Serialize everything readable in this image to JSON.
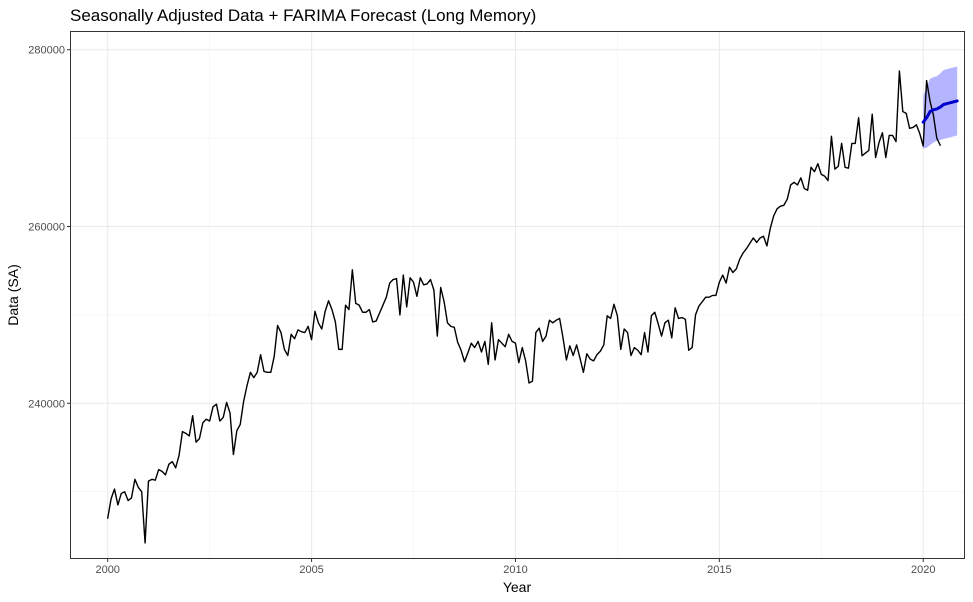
{
  "chart_data": {
    "type": "line",
    "title": "Seasonally Adjusted Data + FARIMA Forecast (Long Memory)",
    "xlabel": "Year",
    "ylabel": "Data (SA)",
    "xlim": [
      1999.1,
      2021.0
    ],
    "ylim": [
      222500,
      282000
    ],
    "x_ticks": [
      2000,
      2005,
      2010,
      2015,
      2020
    ],
    "x_tick_labels": [
      "2000",
      "2005",
      "2010",
      "2015",
      "2020"
    ],
    "y_ticks": [
      240000,
      260000,
      280000
    ],
    "y_tick_labels": [
      "240000",
      "260000",
      "280000"
    ],
    "grid": true,
    "legend": "none",
    "series": [
      {
        "role": "observed",
        "color": "#000000",
        "x_start": 2000.0,
        "x_step": 0.08333,
        "values": [
          227000,
          229200,
          230300,
          228500,
          229800,
          230000,
          229000,
          229300,
          231400,
          230500,
          230000,
          224200,
          231200,
          231400,
          231300,
          232500,
          232300,
          231900,
          233100,
          233400,
          232700,
          234100,
          236800,
          236600,
          236300,
          238600,
          235600,
          236000,
          237800,
          238200,
          238000,
          239600,
          239900,
          238000,
          238400,
          240100,
          238900,
          234200,
          236900,
          237600,
          240200,
          242000,
          243500,
          242900,
          243500,
          245500,
          243600,
          243500,
          243500,
          245300,
          248800,
          248000,
          246100,
          245400,
          247800,
          247300,
          248300,
          248100,
          248000,
          248700,
          247200,
          250400,
          249100,
          248400,
          250400,
          251600,
          250600,
          249200,
          246100,
          246100,
          251100,
          250600,
          255100,
          251300,
          251100,
          250300,
          250300,
          250600,
          249200,
          249300,
          250200,
          251100,
          252000,
          253600,
          254000,
          254100,
          250000,
          254500,
          250900,
          254200,
          253700,
          252100,
          254200,
          253400,
          253500,
          254000,
          252800,
          247600,
          253100,
          251500,
          249100,
          248700,
          248600,
          246900,
          246000,
          244700,
          245700,
          246800,
          246300,
          247000,
          245800,
          247000,
          244400,
          249100,
          244900,
          247200,
          246800,
          246400,
          247800,
          247000,
          246800,
          244600,
          246300,
          244800,
          242300,
          242500,
          248000,
          248500,
          247000,
          247600,
          249400,
          249100,
          249400,
          249600,
          247400,
          244900,
          246500,
          245400,
          246600,
          245100,
          243500,
          245600,
          245000,
          244800,
          245500,
          245900,
          246600,
          249900,
          249600,
          251200,
          249900,
          246100,
          248400,
          248000,
          245400,
          246300,
          246000,
          245500,
          248000,
          245800,
          249900,
          250300,
          249000,
          247600,
          249100,
          249400,
          247400,
          250800,
          249600,
          249700,
          249500,
          246000,
          246300,
          250000,
          251000,
          251500,
          252000,
          252000,
          252200,
          252200,
          253700,
          254500,
          253600,
          255400,
          254800,
          255200,
          256300,
          257000,
          257500,
          258100,
          258700,
          258200,
          258700,
          258900,
          257800,
          259800,
          261200,
          262000,
          262300,
          262400,
          263100,
          264700,
          265000,
          264700,
          265500,
          264300,
          264100,
          266700,
          266200,
          267100,
          265900,
          265700,
          265200,
          270200,
          266500,
          266800,
          269400,
          266700,
          266600,
          269400,
          269400,
          272300,
          268000,
          268300,
          268600,
          272700,
          267800,
          269500,
          270600,
          267800,
          270300,
          270300,
          269600,
          277600,
          273000,
          272800,
          271100,
          271200,
          271500,
          270500,
          269100,
          276500,
          274200,
          272600,
          270000,
          269200
        ]
      },
      {
        "role": "forecast",
        "color": "#0000cd",
        "band_color": "#b4b4ff",
        "x": [
          2020.0,
          2020.083,
          2020.167,
          2020.25,
          2020.333,
          2020.417,
          2020.5,
          2020.583,
          2020.667,
          2020.75,
          2020.833
        ],
        "values": [
          271800,
          272300,
          273000,
          273200,
          273300,
          273500,
          273800,
          273900,
          274000,
          274100,
          274200
        ],
        "lower": [
          268800,
          268900,
          269200,
          269500,
          269700,
          269800,
          269900,
          270000,
          270100,
          270200,
          270300
        ],
        "upper": [
          274800,
          275700,
          276700,
          276900,
          277000,
          277300,
          277700,
          277800,
          277900,
          278000,
          278100
        ]
      }
    ]
  }
}
